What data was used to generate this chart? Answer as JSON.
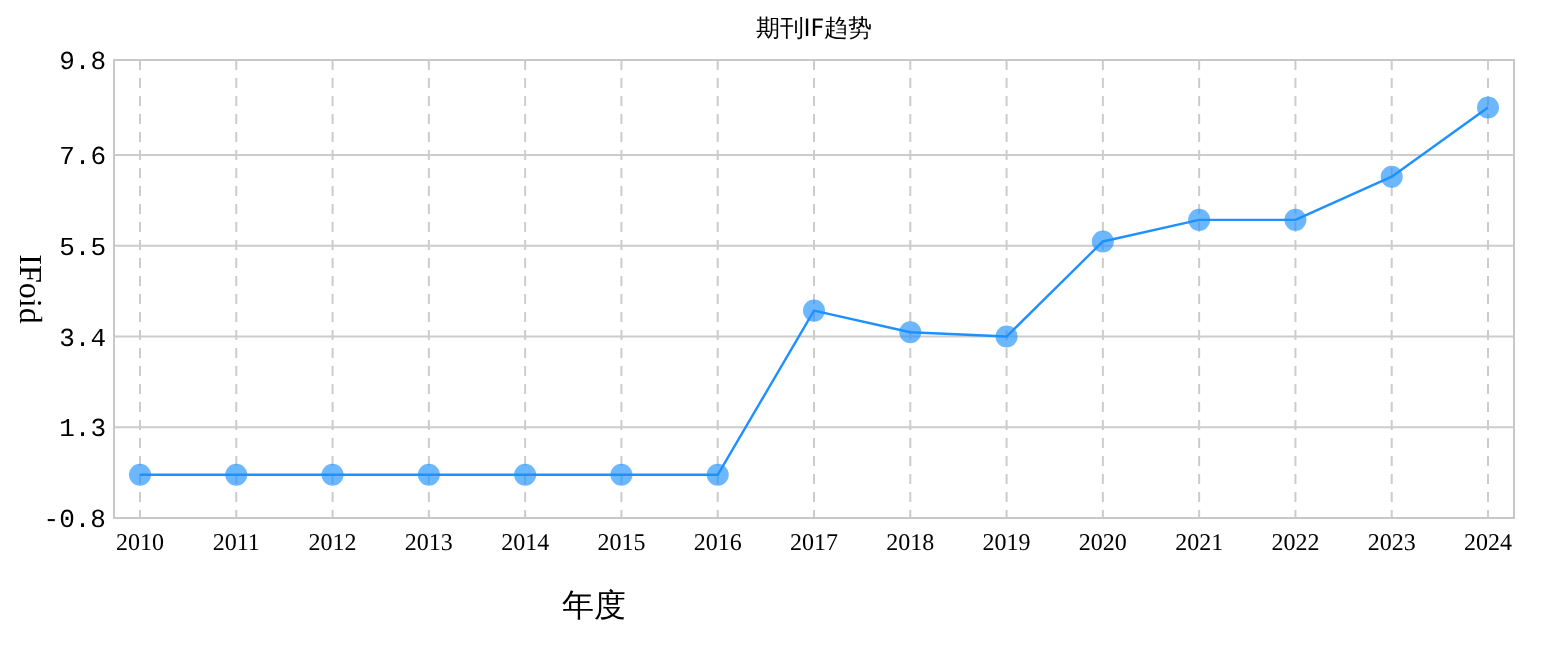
{
  "chart_data": {
    "type": "line",
    "title": "期刊IF趋势",
    "xlabel": "年度",
    "ylabel": "IFoid",
    "categories": [
      "2010",
      "2011",
      "2012",
      "2013",
      "2014",
      "2015",
      "2016",
      "2017",
      "2018",
      "2019",
      "2020",
      "2021",
      "2022",
      "2023",
      "2024"
    ],
    "series": [
      {
        "color": "#1e90ff",
        "values": [
          0.2,
          0.2,
          0.2,
          0.2,
          0.2,
          0.2,
          0.2,
          4.0,
          3.5,
          3.4,
          5.6,
          6.1,
          6.1,
          7.1,
          8.7
        ]
      }
    ],
    "ylim": [
      -0.8,
      9.8
    ],
    "yticks": [
      -0.8,
      1.3,
      3.4,
      5.5,
      7.6,
      9.8
    ],
    "grid": true,
    "marker": "circle",
    "line_style": "solid"
  }
}
